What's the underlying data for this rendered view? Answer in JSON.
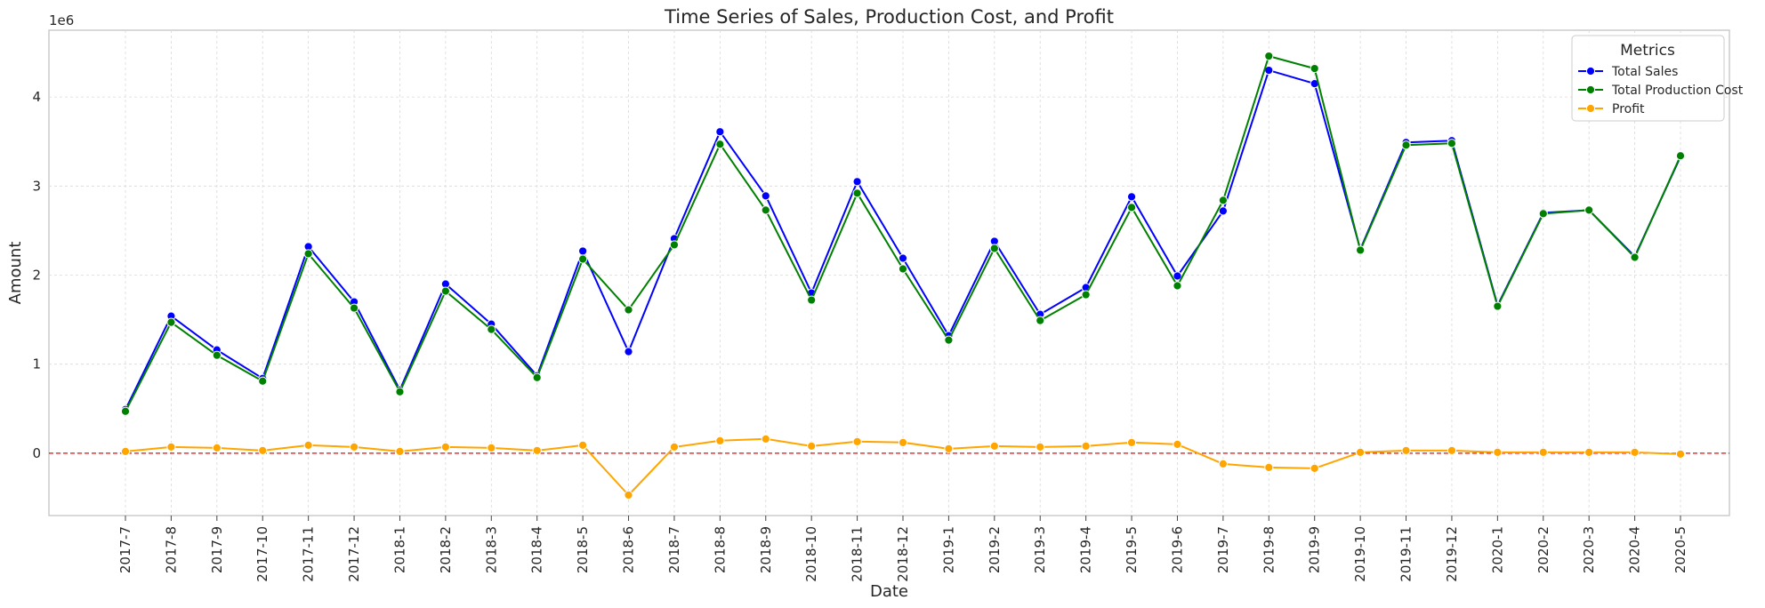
{
  "chart_data": {
    "type": "line",
    "title": "Time Series of Sales, Production Cost, and Profit",
    "xlabel": "Date",
    "ylabel": "Amount",
    "y_offset_label": "1e6",
    "ylim": [
      -0.7,
      4.75
    ],
    "yticks": [
      0,
      1,
      2,
      3,
      4
    ],
    "grid": true,
    "legend": {
      "title": "Metrics",
      "placement": "top-right"
    },
    "reference_line": {
      "y": 0,
      "color": "#ff0000",
      "style": "dashed"
    },
    "categories": [
      "2017-7",
      "2017-8",
      "2017-9",
      "2017-10",
      "2017-11",
      "2017-12",
      "2018-1",
      "2018-2",
      "2018-3",
      "2018-4",
      "2018-5",
      "2018-6",
      "2018-7",
      "2018-8",
      "2018-9",
      "2018-10",
      "2018-11",
      "2018-12",
      "2019-1",
      "2019-2",
      "2019-3",
      "2019-4",
      "2019-5",
      "2019-6",
      "2019-7",
      "2019-8",
      "2019-9",
      "2019-10",
      "2019-11",
      "2019-12",
      "2020-1",
      "2020-2",
      "2020-3",
      "2020-4",
      "2020-5"
    ],
    "series": [
      {
        "name": "Total Sales",
        "color": "#0000ff",
        "values": [
          0.49,
          1.54,
          1.16,
          0.84,
          2.32,
          1.7,
          0.71,
          1.9,
          1.45,
          0.87,
          2.27,
          1.14,
          2.41,
          3.61,
          2.89,
          1.8,
          3.05,
          2.19,
          1.32,
          2.38,
          1.56,
          1.86,
          2.88,
          1.99,
          2.72,
          4.3,
          4.15,
          2.29,
          3.49,
          3.51,
          1.66,
          2.7,
          2.73,
          2.21,
          3.33
        ]
      },
      {
        "name": "Total Production Cost",
        "color": "#008000",
        "values": [
          0.47,
          1.47,
          1.1,
          0.81,
          2.24,
          1.63,
          0.69,
          1.82,
          1.39,
          0.85,
          2.18,
          1.61,
          2.34,
          3.47,
          2.73,
          1.72,
          2.92,
          2.07,
          1.27,
          2.3,
          1.49,
          1.78,
          2.76,
          1.88,
          2.84,
          4.46,
          4.32,
          2.28,
          3.46,
          3.48,
          1.65,
          2.69,
          2.73,
          2.2,
          3.34
        ]
      },
      {
        "name": "Profit",
        "color": "#ffa500",
        "values": [
          0.02,
          0.07,
          0.06,
          0.03,
          0.09,
          0.07,
          0.02,
          0.07,
          0.06,
          0.03,
          0.09,
          -0.47,
          0.07,
          0.14,
          0.16,
          0.08,
          0.13,
          0.12,
          0.05,
          0.08,
          0.07,
          0.08,
          0.12,
          0.1,
          -0.12,
          -0.16,
          -0.17,
          0.01,
          0.03,
          0.03,
          0.01,
          0.01,
          0.01,
          0.01,
          -0.01
        ]
      }
    ]
  }
}
